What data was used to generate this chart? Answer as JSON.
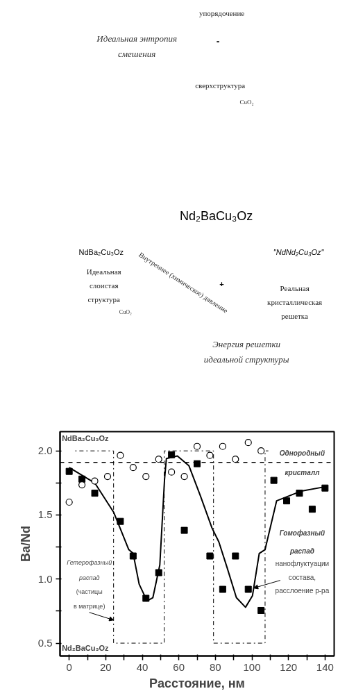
{
  "chart_data": [
    {
      "type": "other",
      "annotations": [
        "упорядочение",
        "Идеальная энтропия смешения",
        "-",
        "сверхструктура",
        "CuO₂",
        "Nd₂BaCu₃Oz",
        "NdBa₂Cu₃Oz",
        "\"NdNd₂Cu₃Oz\"",
        "Внутреннее (химическое) давление",
        "+",
        "Идеальная слоистая структура",
        "CuO₂",
        "Реальная кристаллическая решетка",
        "Энергия решетки идеальной структуры"
      ]
    },
    {
      "type": "scatter",
      "xlabel": "Расстояние, нм",
      "ylabel": "Ba/Nd",
      "xlim": [
        -5,
        145
      ],
      "ylim": [
        0.4,
        2.15
      ],
      "xticks": [
        0,
        {
          "value": 10,
          "label": null
        },
        20,
        {
          "value": 30,
          "label": null
        },
        40,
        {
          "value": 50,
          "label": null
        },
        60,
        {
          "value": 70,
          "label": null
        },
        80,
        {
          "value": 90,
          "label": null
        },
        100,
        {
          "value": 110,
          "label": null
        },
        120,
        {
          "value": 130,
          "label": null
        },
        140
      ],
      "yticks": [
        0.5,
        {
          "value": 0.75,
          "label": null
        },
        {
          "value": 1.0,
          "label": "1.0"
        },
        {
          "value": 1.25,
          "label": null
        },
        1.5,
        {
          "value": 1.75,
          "label": null
        },
        {
          "value": 2.0,
          "label": "2.0"
        }
      ],
      "grid": false,
      "series": [
        {
          "type": "line",
          "color": "#000000",
          "line_style": "dotted",
          "marker": "none",
          "x": [
            3.3,
            24.3,
            24.3,
            52,
            52,
            79,
            79,
            107.2,
            107.2,
            109
          ],
          "values": [
            2.0,
            2.0,
            0.5,
            0.5,
            2.0,
            2.0,
            0.5,
            0.5,
            2.0,
            2.0
          ]
        },
        {
          "type": "line",
          "color": "#000000",
          "line_style": "solid",
          "marker": "none",
          "x": [
            0,
            14,
            24.4,
            32.6,
            35,
            38.3,
            42.6,
            45.8,
            49.6,
            52.2,
            53.2,
            59.2,
            65.5,
            71.8,
            78.1,
            81.9,
            86.4,
            91.5,
            96.5,
            100.3,
            104,
            107.2,
            113.5,
            126.7,
            140
          ],
          "values": [
            1.87,
            1.75,
            1.52,
            1.23,
            1.2,
            0.96,
            0.83,
            0.855,
            1.11,
            1.78,
            1.94,
            1.96,
            1.885,
            1.65,
            1.4,
            1.29,
            1.09,
            0.855,
            0.78,
            0.87,
            1.2,
            1.23,
            1.61,
            1.685,
            1.72
          ]
        },
        {
          "type": "scatter",
          "color": "#000000",
          "marker": "square",
          "x": [
            0,
            7,
            14,
            28,
            35,
            42,
            49,
            56,
            63,
            70,
            77,
            84,
            91,
            98,
            105,
            112,
            119,
            126,
            133,
            140
          ],
          "values": [
            1.84,
            1.78,
            1.67,
            1.45,
            1.18,
            0.85,
            1.05,
            1.97,
            1.38,
            1.9,
            1.18,
            0.92,
            1.18,
            0.92,
            0.755,
            1.77,
            1.61,
            1.67,
            1.545,
            1.71
          ]
        },
        {
          "type": "scatter",
          "color": "#000000",
          "marker": "circle",
          "x": [
            0,
            7,
            14,
            21,
            28,
            35,
            42,
            49,
            56,
            63,
            70,
            77,
            84,
            91,
            98,
            105
          ],
          "values": [
            1.6,
            1.735,
            1.765,
            1.8,
            1.965,
            1.87,
            1.8,
            1.935,
            1.835,
            1.8,
            2.035,
            1.965,
            2.035,
            1.935,
            2.065,
            2.0
          ]
        }
      ],
      "ref_lines": [
        {
          "axis": "y",
          "value": 1.91,
          "color": "#000000",
          "line_style": "dashed"
        }
      ],
      "annotations": [
        "NdBa₂Cu₃Oz",
        "Nd₂BaCu₃Oz",
        "Однородный",
        "кристалл",
        "Гомофазный",
        "распад",
        "нанофлуктуации",
        "состава,",
        {
          "text": "расслоение р-ра",
          "x": 101,
          "y": 0.93
        },
        "Гетерофазный",
        "распад",
        "(частицы",
        {
          "text": "в матрице)",
          "x": 24.3,
          "y": 0.68
        }
      ]
    }
  ]
}
